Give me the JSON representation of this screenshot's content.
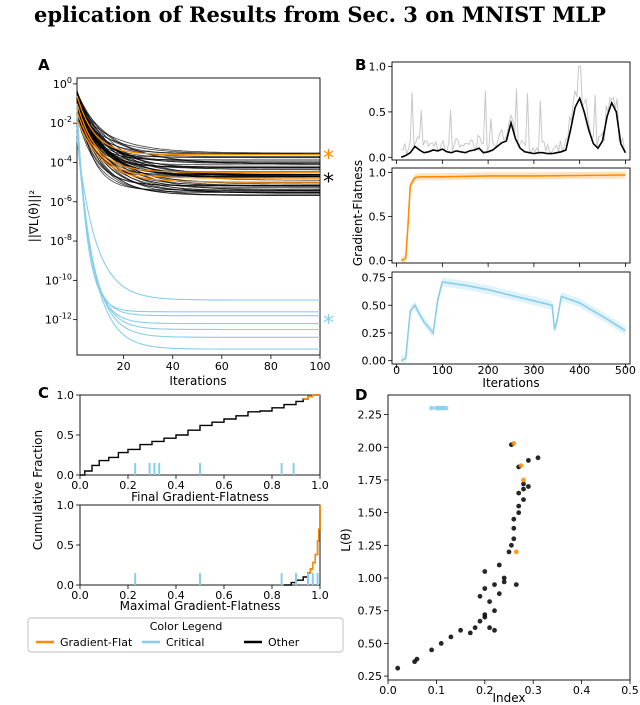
{
  "figure": {
    "title": "eplication of Results from Sec. 3 on MNIST MLP",
    "panel_letters": [
      "A",
      "B",
      "C",
      "D"
    ]
  },
  "colors": {
    "gradient_flat": "#ff8c00",
    "critical": "#87ceeb",
    "other": "#000000",
    "raw_gray": "#c8c8c8"
  },
  "legend": {
    "title": "Color Legend",
    "entries": [
      {
        "label": "Gradient-Flat",
        "color": "#ff8c00"
      },
      {
        "label": "Critical",
        "color": "#87ceeb"
      },
      {
        "label": "Other",
        "color": "#000000"
      }
    ]
  },
  "chart_data": [
    {
      "id": "A",
      "type": "line",
      "scale": "log-y",
      "ylabel": "||∇L(θ)||²",
      "xlabel": "Iterations",
      "xlim": [
        1,
        100
      ],
      "ylim_exp": [
        -13.8,
        0.3
      ],
      "xticks": [
        20,
        40,
        60,
        80,
        100
      ],
      "yticks_exp": [
        0,
        -2,
        -4,
        -6,
        -8,
        -10,
        -12
      ],
      "markers": [
        {
          "label": "*",
          "color": "#ff8c00",
          "y_exp": -3.7
        },
        {
          "label": "*",
          "color": "#000000",
          "y_exp": -4.9
        },
        {
          "label": "*",
          "color": "#87ceeb",
          "y_exp": -12.1
        }
      ],
      "groups": {
        "critical_plateaus_exp": [
          -11.6,
          -11.8,
          -12.2,
          -12.5,
          -12.9,
          -13.5,
          -11.0
        ],
        "orange_plateaus_exp": [
          -3.6,
          -4.5,
          -4.8,
          -5.0
        ],
        "other_plateau_range_exp": [
          -3.5,
          -5.7
        ]
      }
    },
    {
      "id": "B",
      "type": "line",
      "shared_ylabel": "Gradient-Flatness",
      "xlabel": "Iterations",
      "xlim": [
        -10,
        510
      ],
      "xticks": [
        0,
        100,
        200,
        300,
        400,
        500
      ],
      "subplots": [
        {
          "color": "#000000",
          "ylim": [
            -0.03,
            1.05
          ],
          "yticks": [
            0.0,
            0.5,
            1.0
          ],
          "x": [
            10,
            20,
            30,
            40,
            50,
            60,
            70,
            80,
            90,
            100,
            110,
            120,
            130,
            140,
            150,
            160,
            170,
            180,
            190,
            200,
            210,
            220,
            230,
            240,
            250,
            260,
            270,
            280,
            290,
            300,
            310,
            320,
            330,
            340,
            350,
            360,
            370,
            380,
            390,
            400,
            410,
            420,
            430,
            440,
            450,
            460,
            470,
            480,
            490,
            500
          ],
          "y": [
            0.0,
            0.02,
            0.05,
            0.12,
            0.08,
            0.05,
            0.06,
            0.08,
            0.07,
            0.09,
            0.06,
            0.05,
            0.07,
            0.06,
            0.05,
            0.07,
            0.08,
            0.1,
            0.05,
            0.06,
            0.08,
            0.12,
            0.16,
            0.18,
            0.38,
            0.2,
            0.1,
            0.06,
            0.05,
            0.04,
            0.05,
            0.05,
            0.04,
            0.04,
            0.05,
            0.06,
            0.08,
            0.3,
            0.55,
            0.65,
            0.5,
            0.3,
            0.15,
            0.1,
            0.18,
            0.45,
            0.6,
            0.5,
            0.15,
            0.05
          ]
        },
        {
          "color": "#ff8c00",
          "ylim": [
            -0.03,
            1.05
          ],
          "yticks": [
            0.0,
            0.5,
            1.0
          ],
          "x": [
            10,
            20,
            25,
            30,
            40,
            50,
            100,
            200,
            300,
            400,
            500
          ],
          "y": [
            0.0,
            0.02,
            0.4,
            0.85,
            0.94,
            0.95,
            0.95,
            0.96,
            0.96,
            0.965,
            0.97
          ]
        },
        {
          "color": "#87ceeb",
          "ylim": [
            -0.03,
            0.8
          ],
          "yticks": [
            0.0,
            0.25,
            0.5,
            0.75
          ],
          "x": [
            10,
            20,
            30,
            40,
            50,
            60,
            70,
            80,
            90,
            100,
            150,
            200,
            250,
            300,
            340,
            345,
            350,
            360,
            400,
            450,
            500
          ],
          "y": [
            0.0,
            0.02,
            0.45,
            0.5,
            0.42,
            0.35,
            0.3,
            0.25,
            0.55,
            0.71,
            0.68,
            0.64,
            0.59,
            0.54,
            0.5,
            0.28,
            0.35,
            0.58,
            0.52,
            0.4,
            0.27
          ]
        }
      ]
    },
    {
      "id": "C",
      "type": "line",
      "shared_ylabel": "Cumulative Fraction",
      "subplots": [
        {
          "xlabel": "Final Gradient-Flatness",
          "xlim": [
            0.0,
            1.0
          ],
          "ylim": [
            0.0,
            1.0
          ],
          "xticks": [
            0.0,
            0.2,
            0.4,
            0.6,
            0.8,
            1.0
          ],
          "yticks": [
            0.0,
            0.5,
            1.0
          ],
          "curve_x": [
            0.0,
            0.02,
            0.05,
            0.08,
            0.12,
            0.16,
            0.2,
            0.25,
            0.3,
            0.35,
            0.4,
            0.45,
            0.5,
            0.55,
            0.6,
            0.65,
            0.7,
            0.75,
            0.8,
            0.85,
            0.9,
            0.93,
            0.95,
            0.97,
            1.0
          ],
          "curve_y": [
            0.0,
            0.05,
            0.12,
            0.18,
            0.22,
            0.28,
            0.32,
            0.38,
            0.42,
            0.46,
            0.5,
            0.56,
            0.62,
            0.66,
            0.7,
            0.74,
            0.79,
            0.8,
            0.84,
            0.88,
            0.92,
            0.95,
            0.98,
            1.0,
            1.0
          ],
          "orange_from_x": 0.93,
          "rug_critical": [
            0.23,
            0.29,
            0.31,
            0.33,
            0.5,
            0.84,
            0.89
          ]
        },
        {
          "xlabel": "Maximal Gradient-Flatness",
          "xlim": [
            0.0,
            1.0
          ],
          "ylim": [
            0.0,
            1.0
          ],
          "xticks": [
            0.0,
            0.2,
            0.4,
            0.6,
            0.8,
            1.0
          ],
          "yticks": [
            0.0,
            0.5,
            1.0
          ],
          "curve_x": [
            0.85,
            0.88,
            0.9,
            0.93,
            0.95,
            0.96,
            0.97,
            0.98,
            0.99,
            0.995,
            1.0
          ],
          "curve_y": [
            0.0,
            0.03,
            0.06,
            0.1,
            0.15,
            0.2,
            0.28,
            0.38,
            0.55,
            0.7,
            1.0
          ],
          "orange_from_x": 0.95,
          "rug_critical": [
            0.23,
            0.5,
            0.84,
            0.9,
            0.95,
            0.97,
            0.99
          ]
        }
      ]
    },
    {
      "id": "D",
      "type": "scatter",
      "xlabel": "Index",
      "ylabel": "L(θ)",
      "xlim": [
        0.0,
        0.5
      ],
      "ylim": [
        0.22,
        2.4
      ],
      "xticks": [
        0.0,
        0.1,
        0.2,
        0.3,
        0.4,
        0.5
      ],
      "yticks": [
        0.25,
        0.5,
        0.75,
        1.0,
        1.25,
        1.5,
        1.75,
        2.0,
        2.25
      ],
      "series": [
        {
          "name": "Other",
          "color": "#000000",
          "points": [
            [
              0.02,
              0.31
            ],
            [
              0.055,
              0.36
            ],
            [
              0.06,
              0.38
            ],
            [
              0.09,
              0.45
            ],
            [
              0.11,
              0.5
            ],
            [
              0.13,
              0.55
            ],
            [
              0.15,
              0.6
            ],
            [
              0.17,
              0.58
            ],
            [
              0.18,
              0.62
            ],
            [
              0.19,
              0.67
            ],
            [
              0.2,
              0.7
            ],
            [
              0.21,
              0.62
            ],
            [
              0.22,
              0.6
            ],
            [
              0.2,
              0.72
            ],
            [
              0.22,
              0.75
            ],
            [
              0.21,
              0.82
            ],
            [
              0.19,
              0.86
            ],
            [
              0.2,
              0.92
            ],
            [
              0.23,
              0.88
            ],
            [
              0.22,
              0.95
            ],
            [
              0.24,
              1.0
            ],
            [
              0.24,
              0.97
            ],
            [
              0.2,
              1.05
            ],
            [
              0.23,
              1.1
            ],
            [
              0.25,
              1.2
            ],
            [
              0.26,
              1.3
            ],
            [
              0.26,
              1.45
            ],
            [
              0.27,
              1.55
            ],
            [
              0.27,
              1.65
            ],
            [
              0.28,
              1.68
            ],
            [
              0.28,
              1.72
            ],
            [
              0.29,
              1.7
            ],
            [
              0.28,
              1.6
            ],
            [
              0.27,
              1.5
            ],
            [
              0.29,
              1.9
            ],
            [
              0.31,
              1.92
            ],
            [
              0.27,
              1.85
            ],
            [
              0.255,
              2.02
            ],
            [
              0.26,
              1.38
            ],
            [
              0.255,
              1.25
            ],
            [
              0.265,
              0.95
            ]
          ]
        },
        {
          "name": "Gradient-Flat",
          "color": "#ff8c00",
          "points": [
            [
              0.26,
              2.03
            ],
            [
              0.275,
              1.86
            ],
            [
              0.28,
              1.75
            ],
            [
              0.265,
              1.2
            ]
          ]
        },
        {
          "name": "Critical",
          "color": "#87ceeb",
          "points": [
            [
              0.09,
              2.3
            ],
            [
              0.1,
              2.3
            ],
            [
              0.105,
              2.3
            ],
            [
              0.11,
              2.3
            ],
            [
              0.115,
              2.3
            ],
            [
              0.12,
              2.3
            ]
          ]
        }
      ]
    }
  ]
}
